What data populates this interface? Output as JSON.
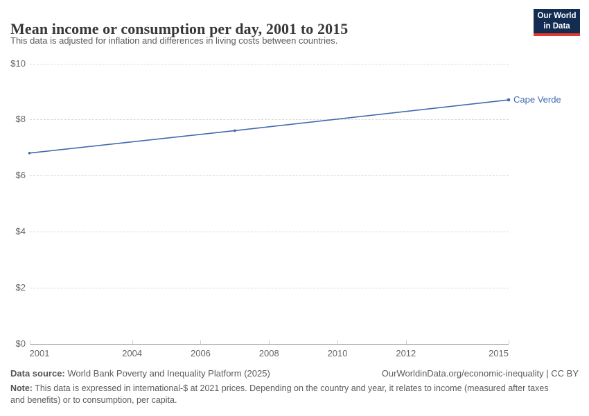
{
  "header": {
    "title": "Mean income or consumption per day, 2001 to 2015",
    "subtitle": "This data is adjusted for inflation and differences in living costs between countries.",
    "logo": {
      "line1": "Our World",
      "line2": "in Data",
      "bg_color": "#132c52",
      "accent_color": "#e23a2c"
    }
  },
  "chart_data": {
    "type": "line",
    "title": "Mean income or consumption per day, 2001 to 2015",
    "xlabel": "",
    "ylabel": "",
    "xlim": [
      2001,
      2015
    ],
    "ylim": [
      0,
      10
    ],
    "x_ticks": [
      2001,
      2004,
      2006,
      2008,
      2010,
      2012,
      2015
    ],
    "y_ticks": [
      0,
      2,
      4,
      6,
      8,
      10
    ],
    "y_tick_prefix": "$",
    "grid": "horizontal-dashed",
    "legend_position": "end-of-line-label",
    "series": [
      {
        "name": "Cape Verde",
        "color": "#4269b0",
        "points": [
          {
            "x": 2001,
            "y": 6.8
          },
          {
            "x": 2007,
            "y": 7.6
          },
          {
            "x": 2015,
            "y": 8.7
          }
        ]
      }
    ]
  },
  "footer": {
    "source_label": "Data source:",
    "source_text": " World Bank Poverty and Inequality Platform (2025)",
    "credit": "OurWorldinData.org/economic-inequality | CC BY",
    "note_label": "Note:",
    "note_text": " This data is expressed in international-$ at 2021 prices. Depending on the country and year, it relates to income (measured after taxes and benefits) or to consumption, per capita."
  }
}
